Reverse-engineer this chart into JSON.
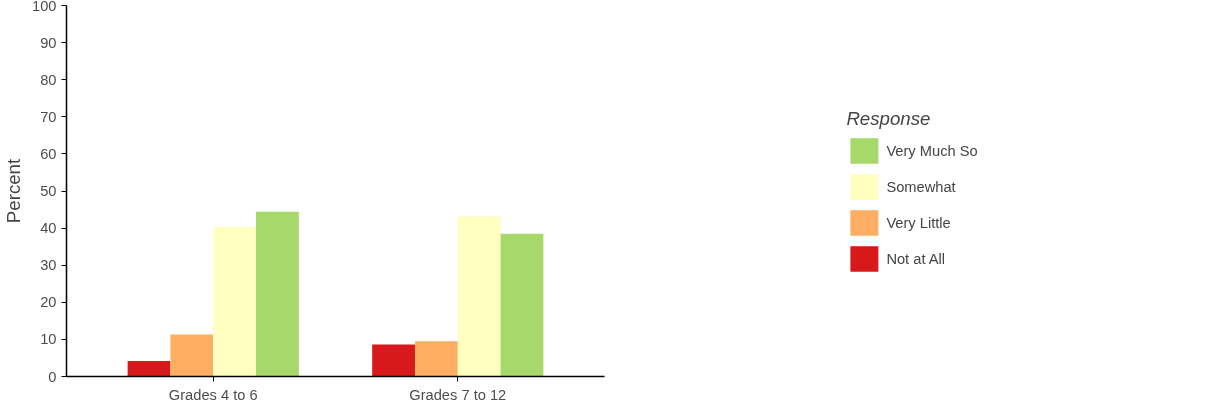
{
  "chart_data": {
    "type": "bar",
    "ylabel": "Percent",
    "legend_title": "Response",
    "categories": [
      "Grades 4 to 6",
      "Grades 7 to 12"
    ],
    "series": [
      {
        "name": "Not at All",
        "color": "#d7191c",
        "values": [
          4.2,
          8.6
        ]
      },
      {
        "name": "Very Little",
        "color": "#fdae61",
        "values": [
          11.3,
          9.5
        ]
      },
      {
        "name": "Somewhat",
        "color": "#ffffbf",
        "values": [
          40.3,
          43.1
        ]
      },
      {
        "name": "Very Much So",
        "color": "#a6d96a",
        "values": [
          44.4,
          38.5
        ]
      }
    ],
    "ylim": [
      0,
      100
    ],
    "yticks": [
      0,
      10,
      20,
      30,
      40,
      50,
      60,
      70,
      80,
      90,
      100
    ],
    "grid": false,
    "legend": "right"
  }
}
